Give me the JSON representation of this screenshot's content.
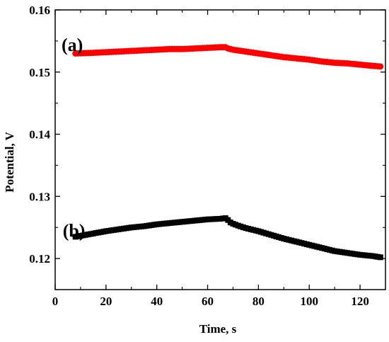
{
  "chart_data": {
    "type": "scatter",
    "xlabel": "Time, s",
    "ylabel": "Potential, V",
    "xlim": [
      0,
      130
    ],
    "ylim": [
      0.115,
      0.16
    ],
    "x_ticks": [
      0,
      20,
      40,
      60,
      80,
      100,
      120
    ],
    "x_tick_labels": [
      "0",
      "20",
      "40",
      "60",
      "80",
      "100",
      "120"
    ],
    "y_ticks": [
      0.12,
      0.13,
      0.14,
      0.15,
      0.16
    ],
    "y_tick_labels": [
      "0.12",
      "0.13",
      "0.14",
      "0.15",
      "0.16"
    ],
    "grid": false,
    "annotations": [
      {
        "text": "(a)",
        "x": 2.5,
        "y": 0.1534
      },
      {
        "text": "(b)",
        "x": 3.0,
        "y": 0.1235
      }
    ],
    "series": [
      {
        "color": "#ff0000",
        "marker": "circle",
        "x": [
          8,
          15,
          20,
          25,
          30,
          35,
          40,
          45,
          50,
          55,
          60,
          65,
          67,
          68,
          70,
          75,
          80,
          85,
          90,
          95,
          100,
          105,
          110,
          115,
          120,
          125,
          128
        ],
        "y": [
          0.153,
          0.1531,
          0.1532,
          0.1533,
          0.1534,
          0.1535,
          0.1536,
          0.1537,
          0.1537,
          0.1538,
          0.1539,
          0.154,
          0.154,
          0.1538,
          0.1536,
          0.1533,
          0.153,
          0.1527,
          0.1524,
          0.1522,
          0.152,
          0.1517,
          0.1515,
          0.1514,
          0.1512,
          0.151,
          0.1509
        ]
      },
      {
        "color": "#000000",
        "marker": "square",
        "x": [
          8,
          12,
          16,
          20,
          25,
          30,
          35,
          40,
          45,
          50,
          55,
          60,
          65,
          67,
          68,
          69,
          70,
          72,
          75,
          80,
          85,
          90,
          95,
          100,
          105,
          110,
          115,
          120,
          125,
          128
        ],
        "y": [
          0.1235,
          0.1238,
          0.1241,
          0.1244,
          0.1247,
          0.125,
          0.1252,
          0.1255,
          0.1257,
          0.1259,
          0.1261,
          0.1263,
          0.1264,
          0.1265,
          0.1262,
          0.1258,
          0.1256,
          0.1253,
          0.1249,
          0.1244,
          0.1238,
          0.1232,
          0.1227,
          0.1222,
          0.1217,
          0.1212,
          0.1209,
          0.1206,
          0.1204,
          0.1202
        ]
      }
    ]
  }
}
